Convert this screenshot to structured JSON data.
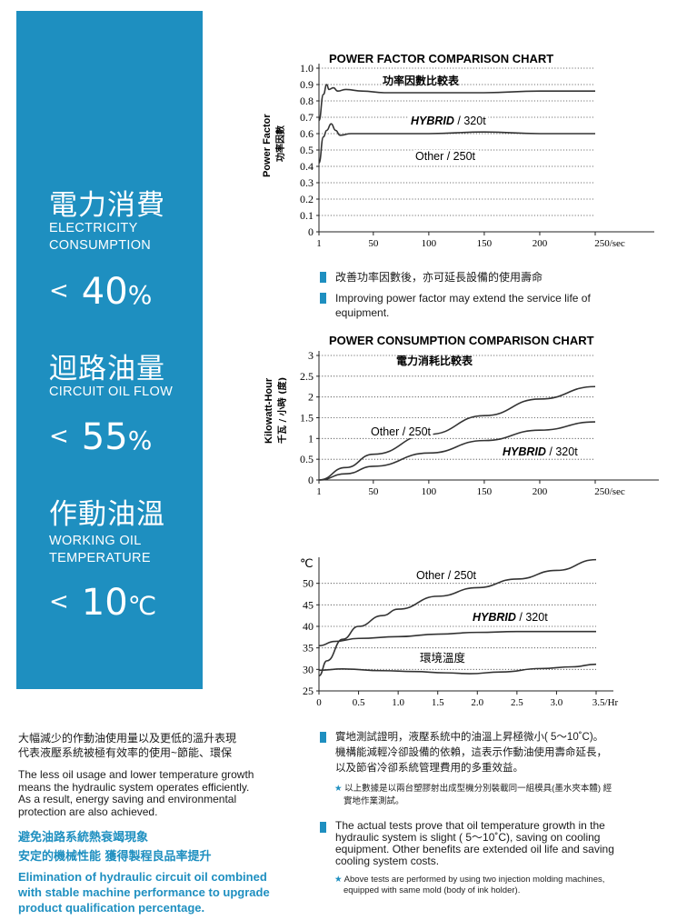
{
  "panel": {
    "metrics": [
      {
        "zh": "電力消費",
        "en1": "ELECTRICITY",
        "en2": "CONSUMPTION",
        "lt": "<",
        "value": "40",
        "unit": "%"
      },
      {
        "zh": "迴路油量",
        "en1": "CIRCUIT OIL FLOW",
        "en2": "",
        "lt": "<",
        "value": "55",
        "unit": "%"
      },
      {
        "zh": "作動油溫",
        "en1": "WORKING OIL",
        "en2": "TEMPERATURE",
        "lt": "<",
        "value": "10",
        "unit": "℃"
      }
    ],
    "colors": {
      "panel_bg": "#1e8fc0",
      "text": "#ffffff"
    }
  },
  "chart_data": [
    {
      "type": "line",
      "title": "POWER FACTOR COMPARISON CHART",
      "subtitle": "功率因數比較表",
      "ylabel": "Power Factor",
      "ylabel_zh": "功率因數",
      "x_ticks": [
        "1",
        "50",
        "100",
        "150",
        "200",
        "250/sec"
      ],
      "y_ticks": [
        "0",
        "0.1",
        "0.2",
        "0.3",
        "0.4",
        "0.5",
        "0.6",
        "0.7",
        "0.8",
        "0.9",
        "1.0"
      ],
      "xlim": [
        1,
        250
      ],
      "ylim": [
        0,
        1.0
      ],
      "grid": "dotted horizontal",
      "series": [
        {
          "name": "HYBRID",
          "label_suffix": " / 320t",
          "x": [
            1,
            5,
            8,
            10,
            14,
            18,
            25,
            40,
            60,
            100,
            150,
            200,
            250
          ],
          "y": [
            0.68,
            0.84,
            0.9,
            0.87,
            0.88,
            0.86,
            0.87,
            0.86,
            0.85,
            0.85,
            0.85,
            0.86,
            0.86
          ]
        },
        {
          "name": "Other / 250t",
          "label_suffix": "",
          "x": [
            1,
            5,
            8,
            12,
            16,
            20,
            30,
            50,
            100,
            150,
            200,
            250
          ],
          "y": [
            0.42,
            0.58,
            0.62,
            0.66,
            0.62,
            0.59,
            0.6,
            0.6,
            0.6,
            0.61,
            0.6,
            0.6
          ]
        }
      ]
    },
    {
      "type": "line",
      "title": "POWER CONSUMPTION COMPARISON CHART",
      "subtitle": "電力消耗比較表",
      "ylabel": "Kilowatt-Hour",
      "ylabel_zh": "千瓦 / 小時 (度)",
      "x_ticks": [
        "1",
        "50",
        "100",
        "150",
        "200",
        "250/sec"
      ],
      "y_ticks": [
        "0",
        "0.5",
        "1",
        "1.5",
        "2",
        "2.5",
        "3"
      ],
      "xlim": [
        1,
        250
      ],
      "ylim": [
        0,
        3
      ],
      "grid": "dotted horizontal",
      "series": [
        {
          "name": "Other / 250t",
          "label_suffix": "",
          "x": [
            1,
            25,
            50,
            100,
            150,
            200,
            250
          ],
          "y": [
            0,
            0.3,
            0.62,
            1.1,
            1.55,
            1.95,
            2.25
          ]
        },
        {
          "name": "HYBRID",
          "label_suffix": " / 320t",
          "x": [
            1,
            25,
            50,
            100,
            150,
            200,
            250
          ],
          "y": [
            0,
            0.15,
            0.33,
            0.65,
            0.95,
            1.2,
            1.4
          ]
        }
      ]
    },
    {
      "type": "line",
      "title": "",
      "y_unit": "℃",
      "x_ticks": [
        "0",
        "0.5",
        "1.0",
        "1.5",
        "2.0",
        "2.5",
        "3.0",
        "3.5/Hr"
      ],
      "y_ticks": [
        "25",
        "30",
        "35",
        "40",
        "45",
        "50"
      ],
      "xlim": [
        0,
        3.5
      ],
      "ylim": [
        25,
        55
      ],
      "grid": "dotted horizontal",
      "series": [
        {
          "name": "Other / 250t",
          "label_suffix": "",
          "x": [
            0,
            0.1,
            0.3,
            0.5,
            0.8,
            1.0,
            1.5,
            2.0,
            2.5,
            3.0,
            3.5
          ],
          "y": [
            28.5,
            32,
            37,
            40,
            42.5,
            44,
            47,
            49,
            51,
            53,
            55.5
          ]
        },
        {
          "name": "HYBRID",
          "label_suffix": " / 320t",
          "x": [
            0,
            0.2,
            0.5,
            1.0,
            1.5,
            2.0,
            2.5,
            3.0,
            3.5
          ],
          "y": [
            35.5,
            36.5,
            37.2,
            37.6,
            38.2,
            38.6,
            38.8,
            38.8,
            38.8
          ]
        },
        {
          "name": "環境溫度",
          "label_suffix": "",
          "x": [
            0,
            0.3,
            0.8,
            1.2,
            1.6,
            1.9,
            2.3,
            2.8,
            3.2,
            3.5
          ],
          "y": [
            29.8,
            30.1,
            29.7,
            29.5,
            29.2,
            29,
            29.4,
            30.2,
            30.6,
            31.2
          ]
        }
      ]
    }
  ],
  "bullets_pf": {
    "zh": "改善功率因數後，亦可延長設備的使用壽命",
    "en1": "Improving power factor may extend the service life of",
    "en2": "equipment."
  },
  "left_text": {
    "zh1": "大幅減少的作動油使用量以及更低的溫升表現",
    "zh2": "代表液壓系統被極有效率的使用~節能、環保",
    "en1": "The less oil usage and lower temperature growth",
    "en2": "means the hydraulic system operates efficiently.",
    "en3": "As a result, energy saving and environmental",
    "en4": "protection are also achieved.",
    "hl_zh1": "避免油路系統熱衰竭現象",
    "hl_zh2": "安定的機械性能 獲得製程良品率提升",
    "hl_en1": "Elimination of hydraulic circuit oil combined",
    "hl_en2": "with stable machine performance to upgrade",
    "hl_en3": "product qualification percentage."
  },
  "right_text": {
    "zh1": "實地測試證明，液壓系統中的油溫上昇極微小( 5～10˚C)。",
    "zh2": "機構能減輕冷卻設備的依賴，這表示作動油使用壽命延長，",
    "zh3": "以及節省冷卻系統管理費用的多重效益。",
    "note_zh1": "以上數據是以兩台塑膠射出成型機分別裝載同一組模具(墨水夾本體) 經",
    "note_zh2": "實地作業測試。",
    "en1": "The actual tests prove that oil temperature growth in the",
    "en2": "hydraulic system is slight ( 5～10˚C), saving on cooling",
    "en3": "equipment. Other benefits are extended oil life and saving",
    "en4": "cooling system costs.",
    "note_en1": "Above tests are performed by using two injection molding machines,",
    "note_en2": "equipped with same mold (body of ink holder).",
    "star": "★"
  },
  "colors": {
    "accent": "#1e8fc0",
    "line": "#333333",
    "highlight_text": "#1e8fc0"
  }
}
